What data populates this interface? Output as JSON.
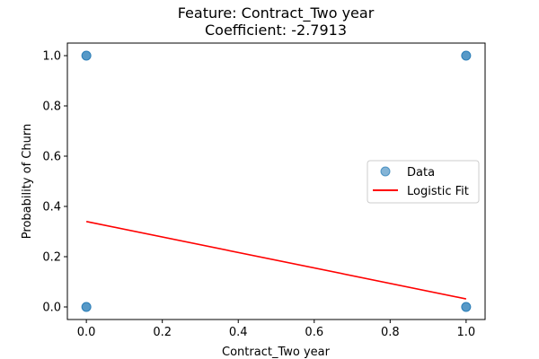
{
  "chart_data": {
    "type": "scatter",
    "title": "Feature: Contract_Two year",
    "subtitle": "Coefficient: -2.7913",
    "xlabel": "Contract_Two year",
    "ylabel": "Probability of Churn",
    "xlim": [
      -0.05,
      1.05
    ],
    "ylim": [
      -0.05,
      1.05
    ],
    "xticks": [
      0.0,
      0.2,
      0.4,
      0.6,
      0.8,
      1.0
    ],
    "yticks": [
      0.0,
      0.2,
      0.4,
      0.6,
      0.8,
      1.0
    ],
    "xtick_labels": [
      "0.0",
      "0.2",
      "0.4",
      "0.6",
      "0.8",
      "1.0"
    ],
    "ytick_labels": [
      "0.0",
      "0.2",
      "0.4",
      "0.6",
      "0.8",
      "1.0"
    ],
    "grid": false,
    "legend": "center-right",
    "series": [
      {
        "name": "Data",
        "kind": "scatter",
        "color": "#1f77b4",
        "points": [
          {
            "x": 0.0,
            "y": 1.0
          },
          {
            "x": 0.0,
            "y": 0.0
          },
          {
            "x": 1.0,
            "y": 1.0
          },
          {
            "x": 1.0,
            "y": 0.0
          }
        ]
      },
      {
        "name": "Logistic Fit",
        "kind": "line",
        "color": "#ff0000",
        "points": [
          {
            "x": 0.0,
            "y": 0.34
          },
          {
            "x": 1.0,
            "y": 0.032
          }
        ]
      }
    ]
  }
}
